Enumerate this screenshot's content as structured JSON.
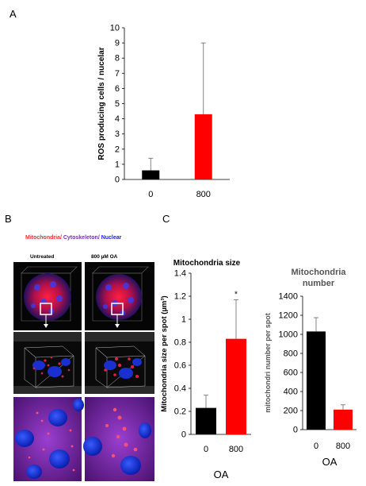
{
  "panel_labels": {
    "a": "A",
    "b": "B",
    "c": "C"
  },
  "microscopy": {
    "legend": {
      "mito": "Mitochondria",
      "slash1": "/ ",
      "cyto": "Cytoskeleton",
      "slash2": "/ ",
      "nuclear": "Nuclear"
    },
    "legend_colors": {
      "mito": "#ff2a2a",
      "cyto": "#7a2fbf",
      "nuclear": "#1a1aff"
    },
    "col_untreated": "Untreated",
    "col_oa": "800 µM OA"
  },
  "chart_data": [
    {
      "id": "A",
      "type": "bar",
      "title": "",
      "ylabel": "ROS producing cells / nucelar",
      "xlabel": "",
      "categories": [
        "0",
        "800"
      ],
      "values": [
        0.6,
        4.3
      ],
      "errors": [
        0.8,
        4.7
      ],
      "colors": [
        "#000000",
        "#ff0000"
      ],
      "ylim": [
        0,
        10
      ],
      "yticks": [
        "0",
        "1",
        "2",
        "3",
        "4",
        "5",
        "6",
        "7",
        "8",
        "9",
        "10"
      ],
      "grid": false
    },
    {
      "id": "C-size",
      "type": "bar",
      "title": "Mitochondria size",
      "ylabel": "Mitochondria size per spot (µm³)",
      "xlabel": "OA",
      "categories": [
        "0",
        "800"
      ],
      "values": [
        0.23,
        0.83
      ],
      "errors": [
        0.11,
        0.34
      ],
      "colors": [
        "#000000",
        "#ff0000"
      ],
      "annotations": [
        "",
        "*"
      ],
      "ylim": [
        0,
        1.4
      ],
      "yticks": [
        "0",
        "0.2",
        "0.4",
        "0.6",
        "0.8",
        "1",
        "1.2",
        "1.4"
      ],
      "grid": false
    },
    {
      "id": "C-number",
      "type": "bar",
      "title": "Mitochondria number",
      "ylabel": "mitochondri number per spot",
      "xlabel": "OA",
      "categories": [
        "0",
        "800"
      ],
      "values": [
        1030,
        210
      ],
      "errors": [
        145,
        50
      ],
      "colors": [
        "#000000",
        "#ff0000"
      ],
      "ylim": [
        0,
        1400
      ],
      "yticks": [
        "0",
        "200",
        "400",
        "600",
        "800",
        "1000",
        "1200",
        "1400"
      ],
      "grid": false
    }
  ]
}
